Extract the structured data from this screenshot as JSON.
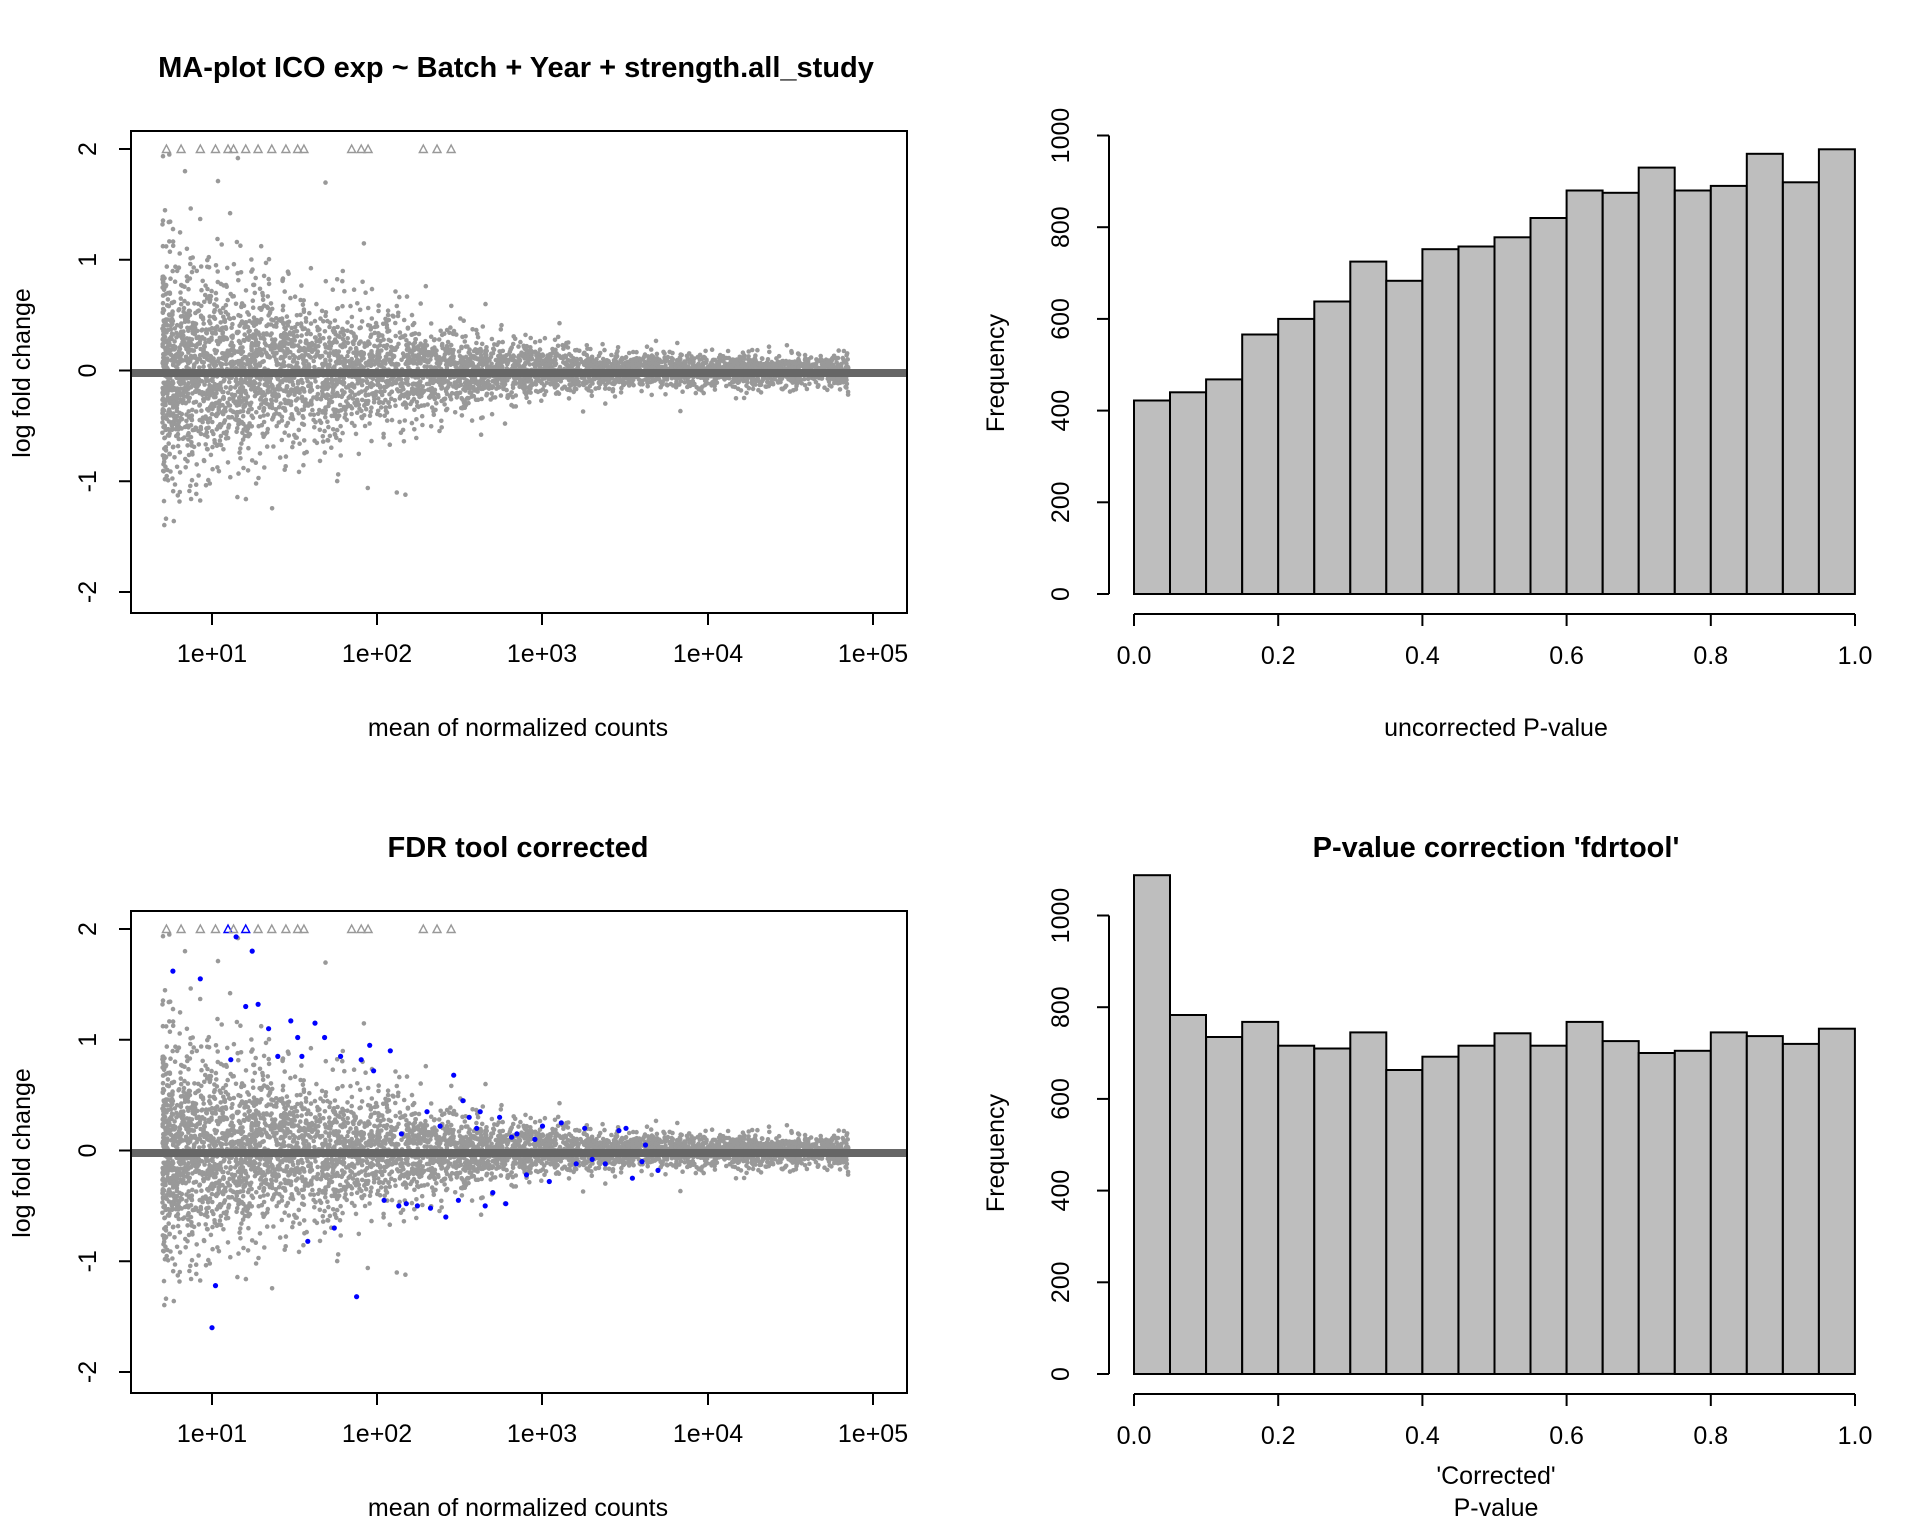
{
  "chart_data": [
    {
      "type": "scatter",
      "title": "MA-plot ICO exp ~ Batch + Year + strength.all_study",
      "xlabel": "mean of normalized counts",
      "ylabel": "log fold change",
      "x_scale": "log10",
      "x_ticks": [
        "1e+01",
        "1e+02",
        "1e+03",
        "1e+04",
        "1e+05"
      ],
      "y_ticks": [
        "-2",
        "-1",
        "0",
        "1",
        "2"
      ],
      "ylim": [
        -2,
        2
      ],
      "xlim": [
        3.2,
        130000
      ],
      "point_color": "#999999",
      "highlight_color": "#0000ff",
      "zero_line_color": "#666666",
      "triangles_at_y2_x": [
        5.3,
        6.5,
        8.5,
        10.5,
        12.5,
        13.5,
        16,
        19,
        23,
        28,
        33,
        36,
        70,
        80,
        88,
        190,
        230,
        280
      ],
      "highlighted_points": []
    },
    {
      "type": "bar",
      "title": "",
      "xlabel": "uncorrected P-value",
      "ylabel": "Frequency",
      "bin_edges": [
        0,
        0.05,
        0.1,
        0.15,
        0.2,
        0.25,
        0.3,
        0.35,
        0.4,
        0.45,
        0.5,
        0.55,
        0.6,
        0.65,
        0.7,
        0.75,
        0.8,
        0.85,
        0.9,
        0.95,
        1.0
      ],
      "values": [
        422,
        440,
        468,
        566,
        600,
        638,
        725,
        683,
        752,
        758,
        778,
        820,
        880,
        875,
        930,
        880,
        890,
        960,
        898,
        970
      ],
      "x_ticks": [
        "0.0",
        "0.2",
        "0.4",
        "0.6",
        "0.8",
        "1.0"
      ],
      "y_ticks": [
        "0",
        "200",
        "400",
        "600",
        "800",
        "1000"
      ],
      "ylim": [
        0,
        1000
      ],
      "bar_color": "#bebebe"
    },
    {
      "type": "scatter",
      "title": "FDR tool corrected",
      "xlabel": "mean of normalized counts",
      "ylabel": "log fold change",
      "x_scale": "log10",
      "x_ticks": [
        "1e+01",
        "1e+02",
        "1e+03",
        "1e+04",
        "1e+05"
      ],
      "y_ticks": [
        "-2",
        "-1",
        "0",
        "1",
        "2"
      ],
      "ylim": [
        -2,
        2
      ],
      "xlim": [
        3.2,
        130000
      ],
      "point_color": "#999999",
      "highlight_color": "#0000ff",
      "zero_line_color": "#666666",
      "triangles_at_y2_x": [
        5.3,
        6.5,
        8.5,
        10.5,
        12.5,
        13.5,
        16,
        19,
        23,
        28,
        33,
        36,
        70,
        80,
        88,
        190,
        230,
        280
      ],
      "blue_triangles_at_y2_x": [
        12.5,
        16,
        75
      ],
      "highlighted_points": [
        [
          5.8,
          1.62
        ],
        [
          8.5,
          1.55
        ],
        [
          10.5,
          -1.22
        ],
        [
          10.0,
          -1.6
        ],
        [
          14,
          1.93
        ],
        [
          17.5,
          1.8
        ],
        [
          16,
          1.3
        ],
        [
          19,
          1.32
        ],
        [
          13,
          0.82
        ],
        [
          22,
          1.1
        ],
        [
          25,
          0.85
        ],
        [
          30,
          1.17
        ],
        [
          33,
          1.02
        ],
        [
          35,
          0.85
        ],
        [
          38,
          -0.82
        ],
        [
          42,
          1.15
        ],
        [
          48,
          1.02
        ],
        [
          55,
          -0.7
        ],
        [
          60,
          0.85
        ],
        [
          75,
          -1.32
        ],
        [
          80,
          0.82
        ],
        [
          90,
          0.95
        ],
        [
          95,
          0.72
        ],
        [
          110,
          -0.45
        ],
        [
          120,
          0.9
        ],
        [
          135,
          -0.5
        ],
        [
          150,
          -0.48
        ],
        [
          175,
          -0.5
        ],
        [
          200,
          0.35
        ],
        [
          210,
          -0.52
        ],
        [
          240,
          0.22
        ],
        [
          260,
          -0.6
        ],
        [
          290,
          0.68
        ],
        [
          310,
          -0.45
        ],
        [
          330,
          0.45
        ],
        [
          360,
          0.3
        ],
        [
          400,
          0.2
        ],
        [
          420,
          0.35
        ],
        [
          450,
          -0.5
        ],
        [
          500,
          -0.38
        ],
        [
          550,
          0.3
        ],
        [
          600,
          -0.48
        ],
        [
          650,
          0.12
        ],
        [
          800,
          -0.22
        ],
        [
          900,
          0.1
        ],
        [
          1000,
          0.22
        ],
        [
          1100,
          -0.28
        ],
        [
          1300,
          0.25
        ],
        [
          1800,
          0.2
        ],
        [
          2000,
          -0.08
        ],
        [
          2400,
          -0.12
        ],
        [
          2900,
          0.18
        ],
        [
          3200,
          0.2
        ],
        [
          3500,
          -0.25
        ],
        [
          4000,
          -0.1
        ],
        [
          5000,
          -0.18
        ],
        [
          4200,
          0.05
        ],
        [
          1600,
          -0.12
        ],
        [
          700,
          0.15
        ],
        [
          140,
          0.15
        ]
      ]
    },
    {
      "type": "bar",
      "title": "P-value correction 'fdrtool'",
      "xlabel": "'Corrected'\nP-value",
      "ylabel": "Frequency",
      "bin_edges": [
        0,
        0.05,
        0.1,
        0.15,
        0.2,
        0.25,
        0.3,
        0.35,
        0.4,
        0.45,
        0.5,
        0.55,
        0.6,
        0.65,
        0.7,
        0.75,
        0.8,
        0.85,
        0.9,
        0.95,
        1.0
      ],
      "values": [
        1088,
        783,
        735,
        768,
        716,
        710,
        745,
        663,
        692,
        716,
        743,
        716,
        768,
        726,
        700,
        705,
        745,
        737,
        720,
        753
      ],
      "x_ticks": [
        "0.0",
        "0.2",
        "0.4",
        "0.6",
        "0.8",
        "1.0"
      ],
      "y_ticks": [
        "0",
        "200",
        "400",
        "600",
        "800",
        "1000"
      ],
      "ylim": [
        0,
        1000
      ],
      "bar_color": "#bebebe"
    }
  ]
}
